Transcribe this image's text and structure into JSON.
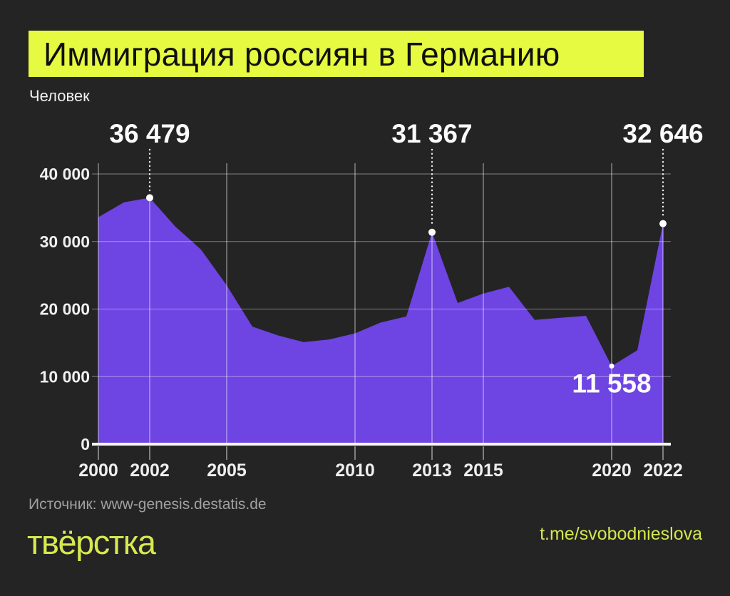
{
  "header": {
    "title": "Иммиграция россиян в Германию",
    "units_label": "Человек"
  },
  "footer": {
    "source": "Источник: www-genesis.destatis.de",
    "logo": "твёрстка",
    "telegram": "t.me/svobodnieslova"
  },
  "colors": {
    "background": "#242425",
    "title_highlight_yellow": "#e6fa41",
    "footer_yellow": "#d8e94c",
    "area_purple": "#6e44e2",
    "text_white": "#efefef",
    "muted_gray": "#a1a1a1"
  },
  "chart_data": {
    "type": "area",
    "title": "Иммиграция россиян в Германию",
    "ylabel": "Человек",
    "xlabel": "",
    "grid": true,
    "xlim": [
      2000,
      2022
    ],
    "ylim": [
      0,
      40000
    ],
    "x": [
      2000,
      2001,
      2002,
      2003,
      2004,
      2005,
      2006,
      2007,
      2008,
      2009,
      2010,
      2011,
      2012,
      2013,
      2014,
      2015,
      2016,
      2017,
      2018,
      2019,
      2020,
      2021,
      2022
    ],
    "values": [
      33600,
      35800,
      36479,
      32200,
      28800,
      23500,
      17400,
      16100,
      15100,
      15500,
      16400,
      18000,
      18900,
      31367,
      20900,
      22300,
      23300,
      18400,
      18700,
      19000,
      11558,
      13900,
      32646
    ],
    "x_ticks": [
      2000,
      2002,
      2005,
      2010,
      2013,
      2015,
      2020,
      2022
    ],
    "y_ticks": [
      {
        "value": 40000,
        "label": "40 000"
      },
      {
        "value": 30000,
        "label": "30 000"
      },
      {
        "value": 20000,
        "label": "20 000"
      },
      {
        "value": 10000,
        "label": "10 000"
      },
      {
        "value": 0,
        "label": "0"
      }
    ],
    "annotations": [
      {
        "year": 2002,
        "value": 36479,
        "label": "36 479",
        "placement": "above"
      },
      {
        "year": 2013,
        "value": 31367,
        "label": "31 367",
        "placement": "above"
      },
      {
        "year": 2022,
        "value": 32646,
        "label": "32 646",
        "placement": "above"
      },
      {
        "year": 2020,
        "value": 11558,
        "label": "11 558",
        "placement": "below"
      }
    ]
  }
}
